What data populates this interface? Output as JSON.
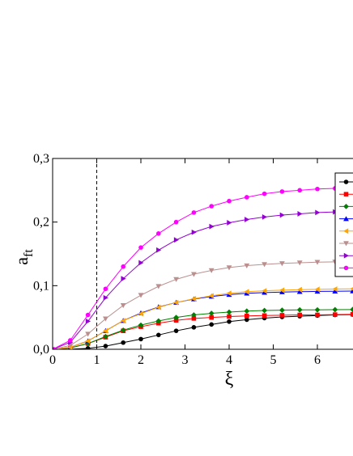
{
  "chart_data": {
    "type": "line",
    "title": "",
    "xlabel": "ξ",
    "ylabel_main": "a",
    "ylabel_sub": "ft",
    "xlim": [
      0,
      6.8
    ],
    "ylim": [
      0,
      0.3
    ],
    "x_ticks": [
      {
        "value": 0,
        "label": "0"
      },
      {
        "value": 1,
        "label": "1"
      },
      {
        "value": 2,
        "label": "2"
      },
      {
        "value": 3,
        "label": "3"
      },
      {
        "value": 4,
        "label": "4"
      },
      {
        "value": 5,
        "label": "5"
      },
      {
        "value": 6,
        "label": "6"
      }
    ],
    "y_ticks": [
      {
        "value": 0,
        "label": "0,0"
      },
      {
        "value": 0.1,
        "label": "0,1"
      },
      {
        "value": 0.2,
        "label": "0,2"
      },
      {
        "value": 0.3,
        "label": "0,3"
      }
    ],
    "grid": false,
    "legend_position": "right (clipped)",
    "reference_line": {
      "x": 1,
      "style": "dashed"
    },
    "x": [
      0,
      0.4,
      0.8,
      1.2,
      1.6,
      2.0,
      2.4,
      2.8,
      3.2,
      3.6,
      4.0,
      4.4,
      4.8,
      5.2,
      5.6,
      6.0,
      6.4,
      6.8
    ],
    "series": [
      {
        "color": "#000000",
        "marker": "circle",
        "values": [
          0,
          0.0002,
          0.0015,
          0.005,
          0.0105,
          0.016,
          0.0225,
          0.029,
          0.0345,
          0.039,
          0.0435,
          0.0465,
          0.049,
          0.0508,
          0.052,
          0.053,
          0.054,
          0.0545
        ]
      },
      {
        "color": "#ff0000",
        "marker": "square",
        "values": [
          0,
          0.002,
          0.009,
          0.019,
          0.029,
          0.0355,
          0.041,
          0.0455,
          0.0485,
          0.05,
          0.0515,
          0.0525,
          0.053,
          0.0535,
          0.054,
          0.054,
          0.0545,
          0.055
        ]
      },
      {
        "color": "#008000",
        "marker": "diamond",
        "values": [
          0,
          0.002,
          0.009,
          0.02,
          0.03,
          0.038,
          0.0445,
          0.05,
          0.054,
          0.0565,
          0.0585,
          0.06,
          0.061,
          0.0615,
          0.062,
          0.062,
          0.0623,
          0.0625
        ]
      },
      {
        "color": "#0000ff",
        "marker": "triangle-up",
        "values": [
          0,
          0.003,
          0.013,
          0.029,
          0.045,
          0.057,
          0.0665,
          0.0735,
          0.079,
          0.083,
          0.086,
          0.088,
          0.0892,
          0.09,
          0.0905,
          0.091,
          0.0912,
          0.0915
        ]
      },
      {
        "color": "#ffa500",
        "marker": "triangle-left",
        "values": [
          0,
          0.003,
          0.013,
          0.029,
          0.045,
          0.056,
          0.066,
          0.0735,
          0.0795,
          0.084,
          0.088,
          0.0905,
          0.092,
          0.093,
          0.0938,
          0.0943,
          0.0947,
          0.095
        ]
      },
      {
        "color": "#bc8f8f",
        "marker": "triangle-down",
        "values": [
          0,
          0.006,
          0.024,
          0.048,
          0.069,
          0.085,
          0.099,
          0.11,
          0.118,
          0.124,
          0.1285,
          0.1315,
          0.1335,
          0.135,
          0.136,
          0.137,
          0.1375,
          0.138
        ]
      },
      {
        "color": "#9400d3",
        "marker": "triangle-right",
        "values": [
          0,
          0.011,
          0.044,
          0.081,
          0.111,
          0.136,
          0.156,
          0.172,
          0.184,
          0.193,
          0.199,
          0.204,
          0.208,
          0.211,
          0.213,
          0.215,
          0.216,
          0.217
        ]
      },
      {
        "color": "#ff00ff",
        "marker": "circle",
        "values": [
          0,
          0.014,
          0.054,
          0.095,
          0.13,
          0.16,
          0.182,
          0.2,
          0.215,
          0.225,
          0.233,
          0.239,
          0.2445,
          0.248,
          0.25,
          0.252,
          0.253,
          0.254
        ]
      }
    ]
  }
}
